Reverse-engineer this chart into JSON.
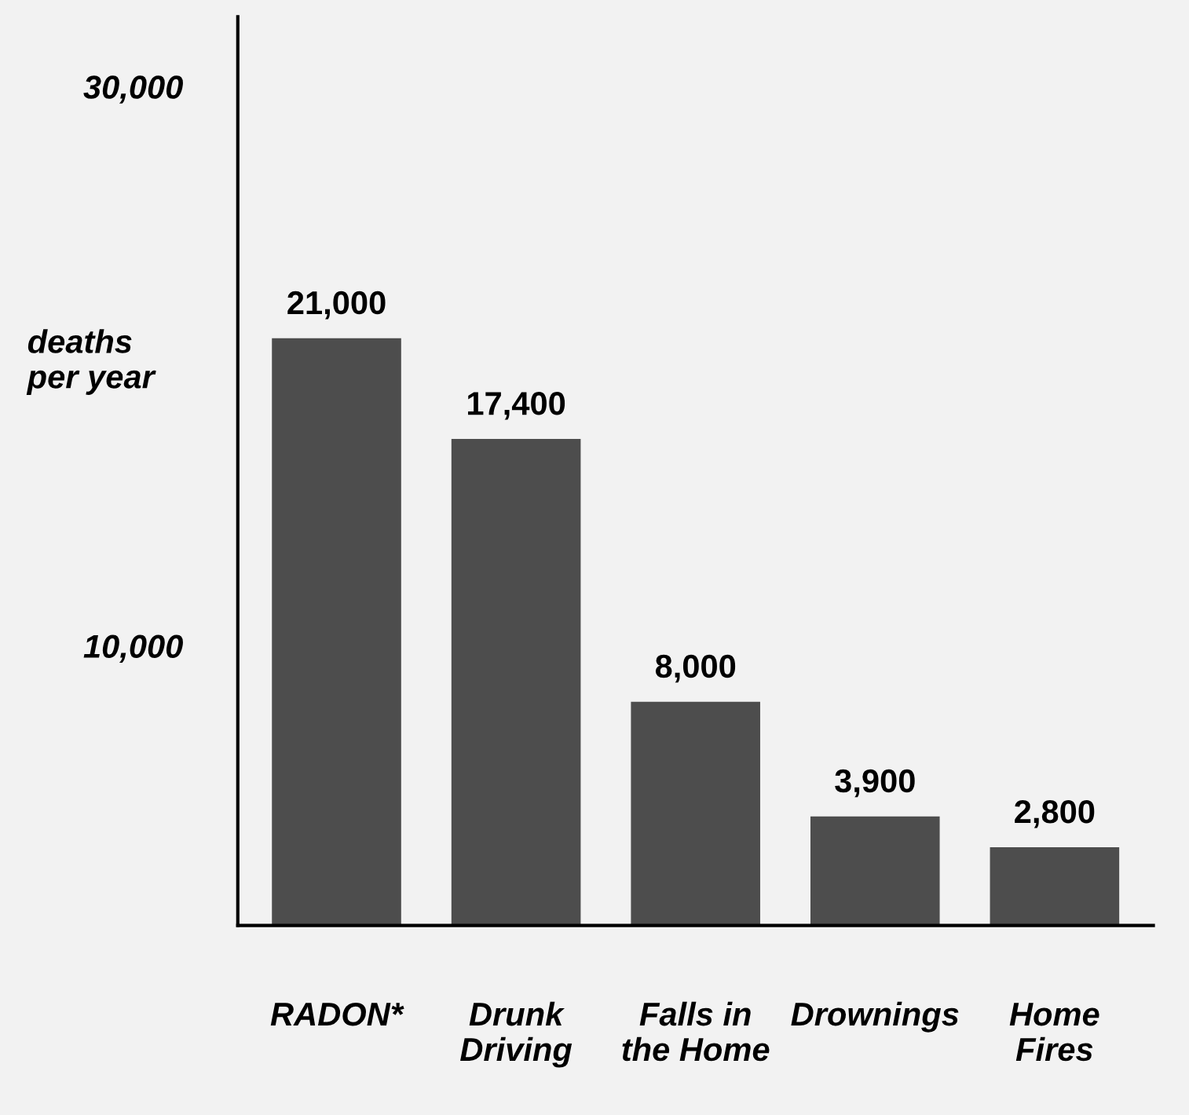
{
  "chart_data": {
    "type": "bar",
    "ylabel": "deaths\nper year",
    "categories": [
      "RADON*",
      "Drunk\nDriving",
      "Falls in\nthe Home",
      "Drownings",
      "Home\nFires"
    ],
    "values": [
      21000,
      17400,
      8000,
      3900,
      2800
    ],
    "color": "#4d4d4d",
    "ylim": [
      0,
      32500
    ],
    "yticks": [
      {
        "value": 10000,
        "label": "10,000"
      },
      {
        "value": 30000,
        "label": "30,000"
      }
    ],
    "value_labels": [
      "21,000",
      "17,400",
      "8,000",
      "3,900",
      "2,800"
    ],
    "grid": false,
    "legend": false
  }
}
